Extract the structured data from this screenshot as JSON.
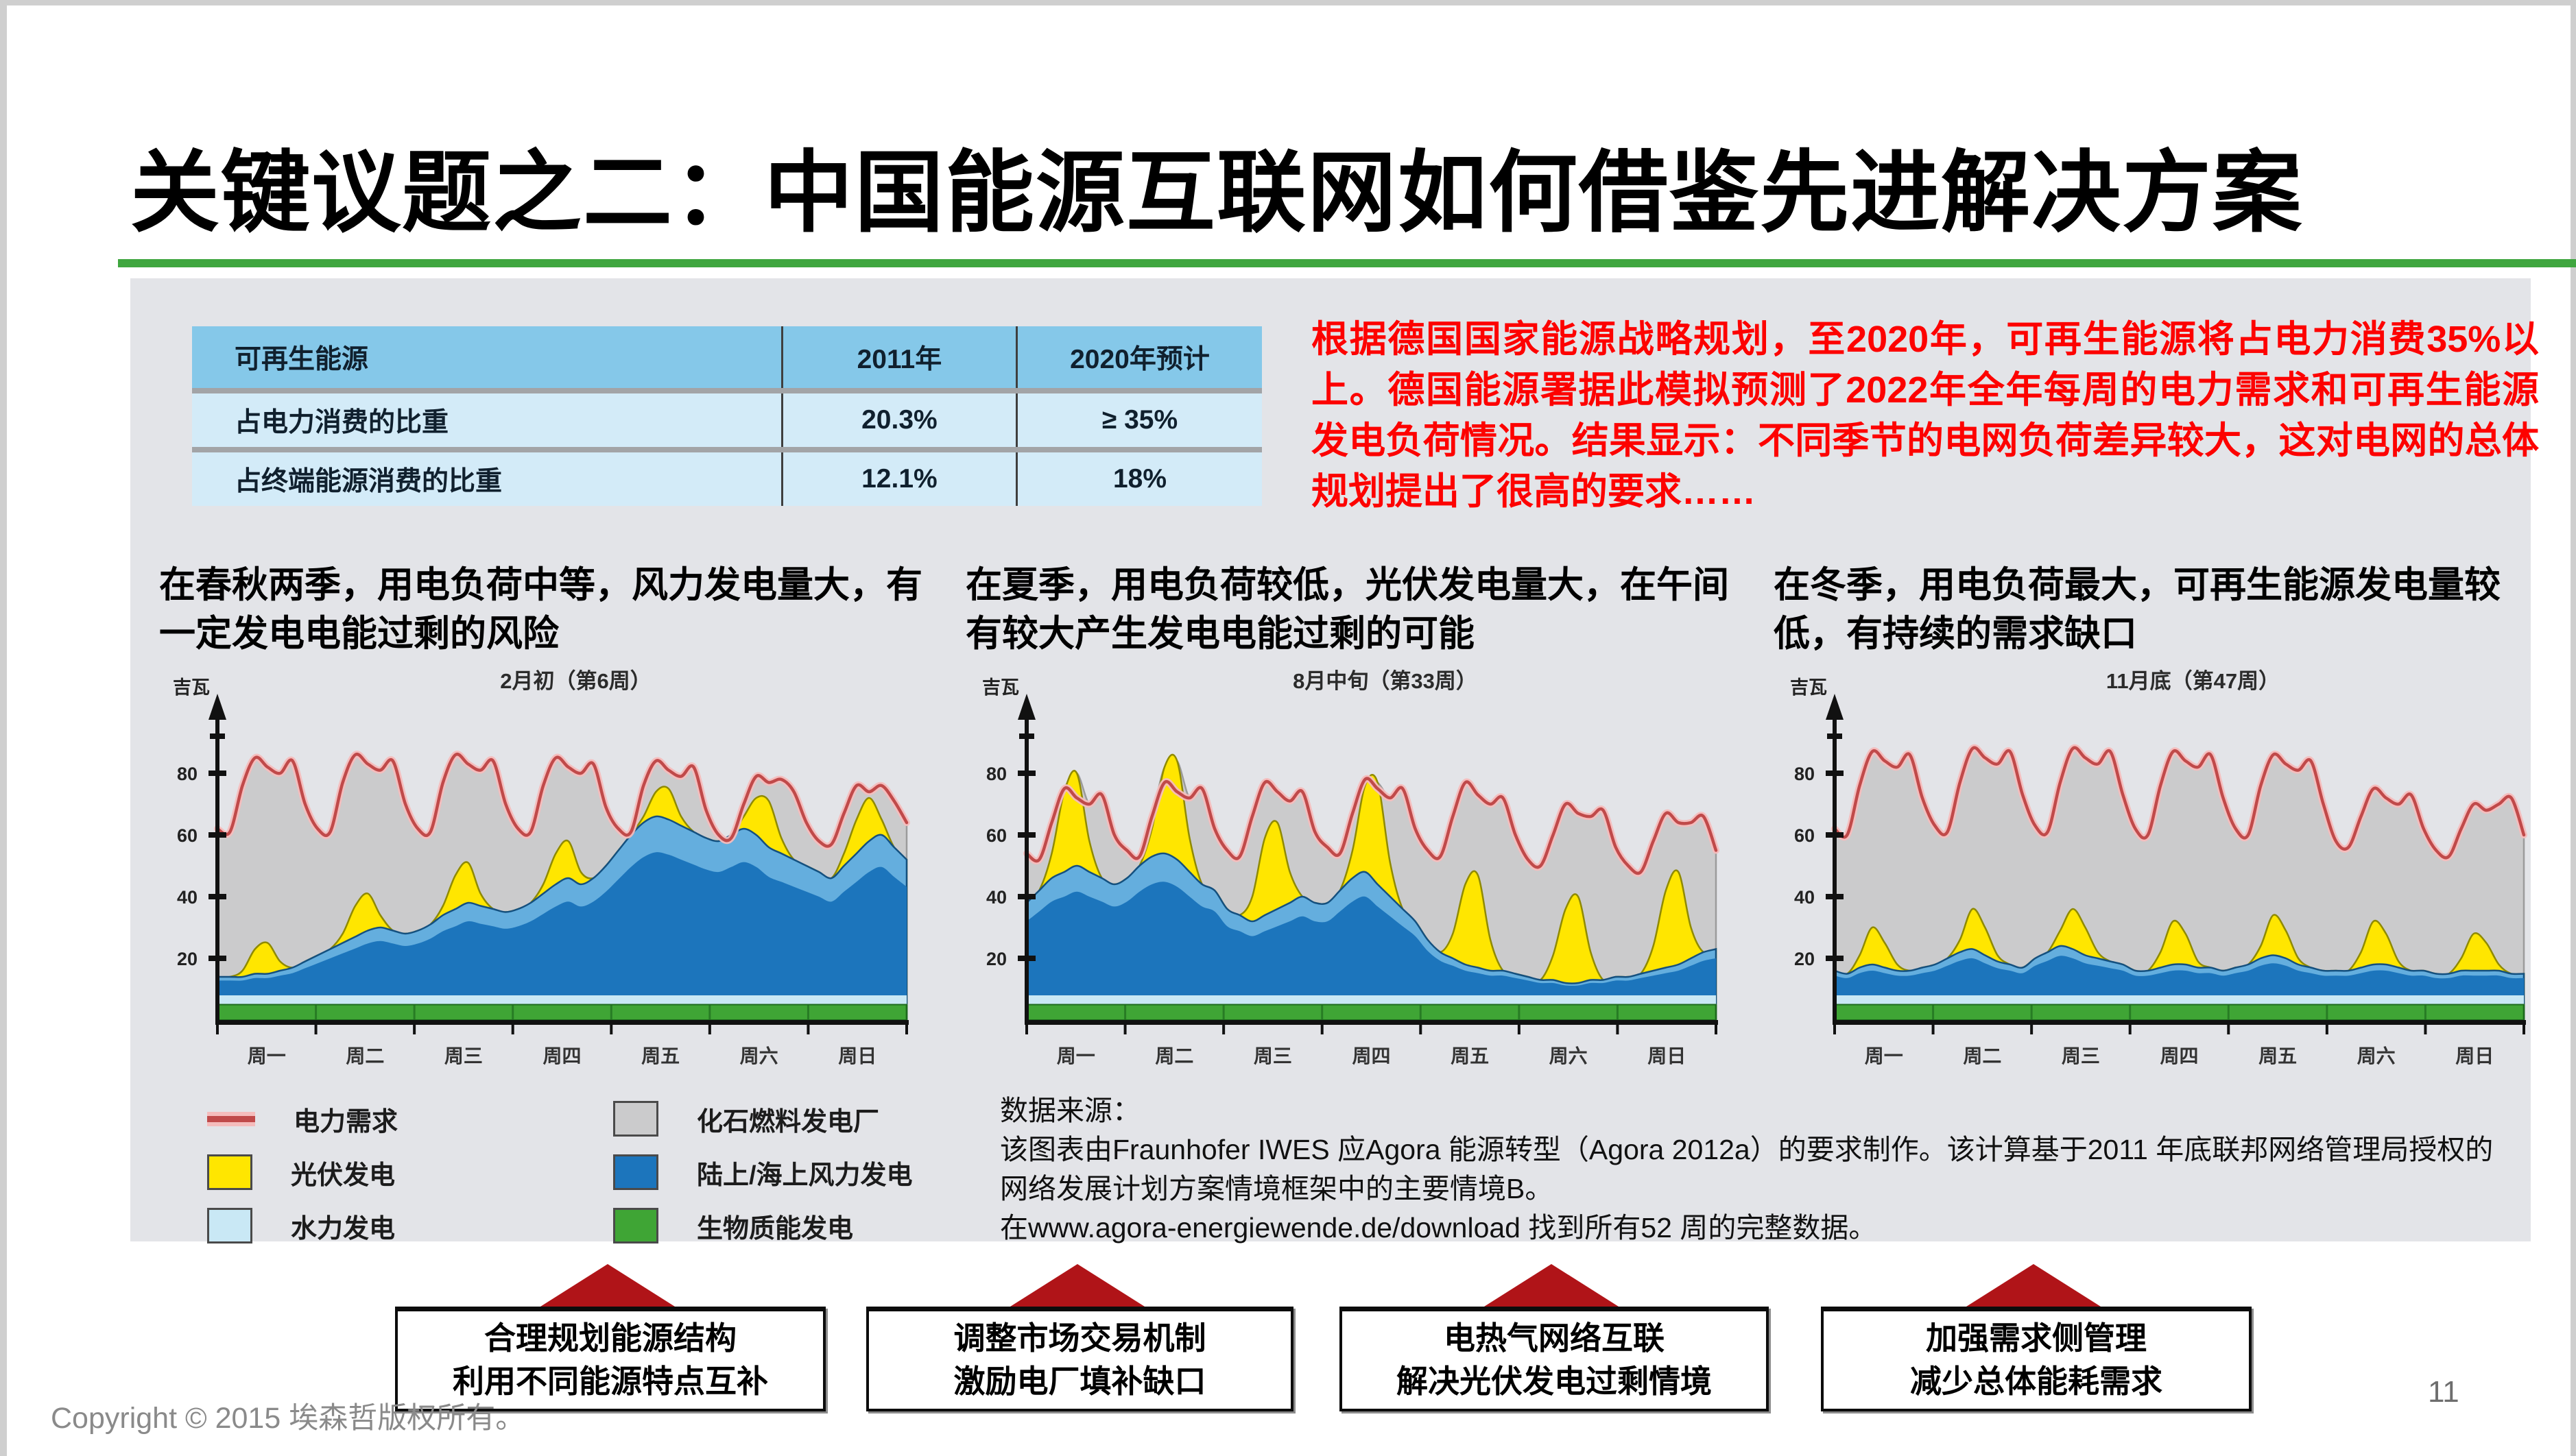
{
  "slide": {
    "title": "关键议题之二：中国能源互联网如何借鉴先进解决方案",
    "copyright": "Copyright © 2015 埃森哲版权所有。",
    "page_number": "11"
  },
  "colors": {
    "accent_green": "#3fa63f",
    "panel_gray": "#e3e4e8",
    "red_text": "#fd0200",
    "arrow_red": "#b01418",
    "table_header_blue": "#85c8e9",
    "table_row_blue": "#d3ebf8",
    "demand": "#c04a4a",
    "demand_halo": "#f5bcbc",
    "pv": "#ffe600",
    "hydro": "#c9e8f5",
    "wind": "#1c75bc",
    "wind_light": "#64aede",
    "biomass": "#3fa535",
    "fossil": "#cbcbcc"
  },
  "table": {
    "header": [
      "可再生能源",
      "2011年",
      "2020年预计"
    ],
    "rows": [
      [
        "占电力消费的比重",
        "20.3%",
        "≥ 35%"
      ],
      [
        "占终端能源消费的比重",
        "12.1%",
        "18%"
      ]
    ]
  },
  "summary_text": "根据德国国家能源战略规划，至2020年，可再生能源将占电力消费35%以上。德国能源署据此模拟预测了2022年全年每周的电力需求和可再生能源发电负荷情况。结果显示：不同季节的电网负荷差异较大，这对电网的总体规划提出了很高的要求……",
  "section_notes": [
    "在春秋两季，用电负荷中等，风力发电量大，有一定发电电能过剩的风险",
    "在夏季，用电负荷较低，光伏发电量大，在午间有较大产生发电电能过剩的可能",
    "在冬季，用电负荷最大，可再生能源发电量较低，有持续的需求缺口"
  ],
  "legend": {
    "items": [
      {
        "label": "电力需求",
        "color": "#c04a4a",
        "type": "line"
      },
      {
        "label": "光伏发电",
        "color": "#ffe600",
        "type": "box"
      },
      {
        "label": "水力发电",
        "color": "#c9e8f5",
        "type": "box"
      },
      {
        "label": "化石燃料发电厂",
        "color": "#cbcbcc",
        "type": "box"
      },
      {
        "label": "陆上/海上风力发电",
        "color": "#1c75bc",
        "type": "box"
      },
      {
        "label": "生物质能发电",
        "color": "#3fa535",
        "type": "box"
      }
    ]
  },
  "source_note": {
    "heading": "数据来源：",
    "body": "该图表由Fraunhofer IWES 应Agora 能源转型（Agora 2012a）的要求制作。该计算基于2011 年底联邦网络管理局授权的网络发展计划方案情境框架中的主要情境B。",
    "footer": "在www.agora-energiewende.de/download 找到所有52 周的完整数据。"
  },
  "action_boxes": [
    {
      "line1": "合理规划能源结构",
      "line2": "利用不同能源特点互补"
    },
    {
      "line1": "调整市场交易机制",
      "line2": "激励电厂填补缺口"
    },
    {
      "line1": "电热气网络互联",
      "line2": "解决光伏发电过剩情境"
    },
    {
      "line1": "加强需求侧管理",
      "line2": "减少总体能耗需求"
    }
  ],
  "chart_data": [
    {
      "type": "area",
      "title": "2月初（第6周）",
      "ylabel": "吉瓦",
      "ylim": [
        0,
        100
      ],
      "yticks": [
        20,
        40,
        60,
        80
      ],
      "x_labels": [
        "周一",
        "周二",
        "周三",
        "周四",
        "周五",
        "周六",
        "周日"
      ],
      "series_note": "stacked: biomass+hydro+wind+pv, fossil fills up to demand; units GW, 8 samples/day",
      "hydro": 3,
      "biomass": 5,
      "demand": [
        62,
        61,
        76,
        85,
        82,
        80,
        84,
        70,
        62,
        61,
        77,
        86,
        83,
        81,
        84,
        70,
        62,
        61,
        77,
        86,
        83,
        81,
        84,
        70,
        62,
        61,
        76,
        85,
        82,
        80,
        83,
        69,
        62,
        61,
        76,
        84,
        81,
        79,
        82,
        68,
        60,
        59,
        70,
        79,
        77,
        78,
        74,
        64,
        58,
        57,
        67,
        76,
        74,
        76,
        71,
        64
      ],
      "wind": [
        6,
        6,
        6,
        7,
        7,
        8,
        9,
        11,
        13,
        15,
        17,
        19,
        21,
        22,
        21,
        20,
        21,
        23,
        26,
        28,
        30,
        29,
        28,
        27,
        28,
        30,
        33,
        36,
        38,
        36,
        38,
        42,
        47,
        52,
        56,
        58,
        57,
        55,
        53,
        51,
        50,
        52,
        54,
        52,
        48,
        46,
        44,
        42,
        40,
        38,
        42,
        46,
        50,
        52,
        48,
        44
      ],
      "pv": [
        0,
        0,
        2,
        8,
        10,
        3,
        0,
        0,
        0,
        0,
        3,
        10,
        12,
        4,
        0,
        0,
        0,
        0,
        3,
        11,
        13,
        4,
        0,
        0,
        0,
        0,
        3,
        10,
        12,
        4,
        0,
        0,
        0,
        0,
        2,
        8,
        10,
        3,
        0,
        0,
        0,
        0,
        4,
        12,
        15,
        5,
        0,
        0,
        0,
        0,
        4,
        11,
        14,
        5,
        0,
        0
      ]
    },
    {
      "type": "area",
      "title": "8月中旬（第33周）",
      "ylabel": "吉瓦",
      "ylim": [
        0,
        100
      ],
      "yticks": [
        20,
        40,
        60,
        80
      ],
      "x_labels": [
        "周一",
        "周二",
        "周三",
        "周四",
        "周五",
        "周六",
        "周日"
      ],
      "series_note": "stacked: biomass+hydro+wind+pv, fossil fills up to demand; units GW, 8 samples/day",
      "hydro": 3,
      "biomass": 5,
      "demand": [
        54,
        52,
        64,
        75,
        72,
        70,
        73,
        60,
        55,
        53,
        66,
        77,
        74,
        72,
        75,
        62,
        55,
        53,
        66,
        77,
        74,
        71,
        74,
        61,
        56,
        54,
        67,
        78,
        75,
        72,
        75,
        62,
        55,
        53,
        66,
        77,
        73,
        70,
        72,
        60,
        52,
        50,
        60,
        70,
        67,
        66,
        68,
        56,
        50,
        48,
        58,
        67,
        64,
        64,
        66,
        55
      ],
      "wind": [
        30,
        34,
        38,
        40,
        42,
        40,
        38,
        36,
        38,
        42,
        45,
        46,
        44,
        40,
        36,
        34,
        28,
        26,
        24,
        26,
        28,
        30,
        32,
        30,
        30,
        34,
        38,
        40,
        36,
        32,
        28,
        24,
        18,
        14,
        12,
        10,
        9,
        8,
        8,
        7,
        6,
        5,
        5,
        4,
        4,
        5,
        5,
        6,
        6,
        7,
        8,
        9,
        10,
        12,
        14,
        15
      ],
      "pv": [
        0,
        0,
        8,
        26,
        30,
        10,
        0,
        0,
        0,
        0,
        9,
        28,
        32,
        11,
        0,
        0,
        0,
        0,
        8,
        25,
        28,
        10,
        0,
        0,
        0,
        0,
        9,
        28,
        33,
        11,
        0,
        0,
        0,
        0,
        8,
        26,
        30,
        10,
        0,
        0,
        0,
        0,
        8,
        24,
        28,
        9,
        0,
        0,
        0,
        0,
        8,
        25,
        30,
        10,
        0,
        0
      ]
    },
    {
      "type": "area",
      "title": "11月底（第47周）",
      "ylabel": "吉瓦",
      "ylim": [
        0,
        100
      ],
      "yticks": [
        20,
        40,
        60,
        80
      ],
      "x_labels": [
        "周一",
        "周二",
        "周三",
        "周四",
        "周五",
        "周六",
        "周日"
      ],
      "series_note": "stacked: biomass+hydro+wind+pv, fossil fills up to demand; units GW, 8 samples/day",
      "hydro": 3,
      "biomass": 5,
      "demand": [
        62,
        60,
        76,
        87,
        84,
        82,
        86,
        72,
        63,
        61,
        77,
        88,
        85,
        83,
        87,
        73,
        63,
        61,
        77,
        88,
        85,
        83,
        87,
        73,
        62,
        60,
        76,
        87,
        84,
        82,
        86,
        72,
        62,
        60,
        76,
        86,
        83,
        81,
        84,
        70,
        58,
        56,
        66,
        75,
        72,
        70,
        73,
        62,
        55,
        53,
        62,
        70,
        68,
        70,
        72,
        60
      ],
      "wind": [
        8,
        7,
        9,
        10,
        9,
        8,
        8,
        9,
        10,
        12,
        14,
        15,
        13,
        11,
        10,
        9,
        12,
        14,
        16,
        15,
        13,
        12,
        11,
        10,
        8,
        8,
        9,
        10,
        10,
        9,
        9,
        8,
        9,
        10,
        12,
        13,
        12,
        10,
        9,
        8,
        8,
        8,
        9,
        10,
        10,
        9,
        8,
        8,
        7,
        7,
        8,
        8,
        8,
        8,
        7,
        7
      ],
      "pv": [
        0,
        0,
        4,
        12,
        8,
        2,
        0,
        0,
        0,
        0,
        4,
        13,
        9,
        2,
        0,
        0,
        0,
        0,
        5,
        13,
        9,
        2,
        0,
        0,
        0,
        0,
        5,
        14,
        10,
        2,
        0,
        0,
        0,
        0,
        4,
        13,
        9,
        2,
        0,
        0,
        0,
        0,
        5,
        14,
        10,
        2,
        0,
        0,
        0,
        0,
        4,
        12,
        9,
        2,
        0,
        0
      ]
    }
  ]
}
